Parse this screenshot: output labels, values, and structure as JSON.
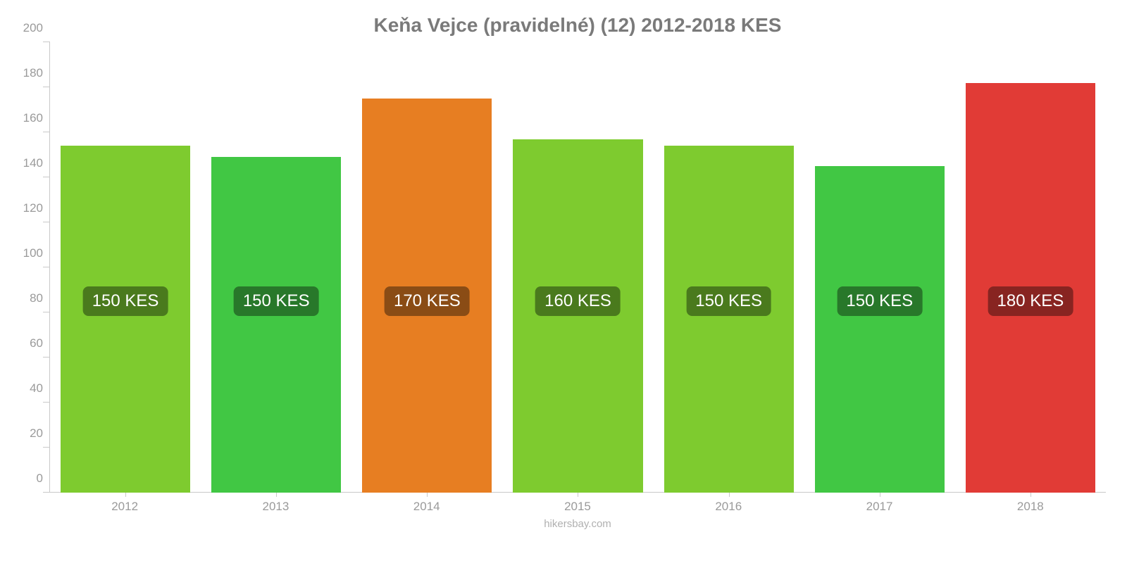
{
  "chart": {
    "type": "bar",
    "title": "Keňa Vejce (pravidelné) (12) 2012-2018 KES",
    "title_color": "#7a7a7a",
    "title_fontsize": 28,
    "background_color": "#ffffff",
    "axis_color": "#c9c9c9",
    "tick_label_color": "#9a9a9a",
    "tick_label_fontsize": 17,
    "ylim_min": 0,
    "ylim_max": 200,
    "ytick_step": 20,
    "yticks": [
      0,
      20,
      40,
      60,
      80,
      100,
      120,
      140,
      160,
      180,
      200
    ],
    "bar_width_pct": 86,
    "badge_fontsize": 24,
    "badge_text_color": "#ffffff",
    "badge_y_value": 85,
    "footer": "hikersbay.com",
    "footer_color": "#b0b0b0",
    "categories": [
      "2012",
      "2013",
      "2014",
      "2015",
      "2016",
      "2017",
      "2018"
    ],
    "values": [
      154,
      149,
      175,
      157,
      154,
      145,
      182
    ],
    "bar_colors": [
      "#7ecb2f",
      "#41c744",
      "#e77e22",
      "#7ecb2f",
      "#7ecb2f",
      "#41c744",
      "#e13b36"
    ],
    "badge_labels": [
      "150 KES",
      "150 KES",
      "170 KES",
      "160 KES",
      "150 KES",
      "150 KES",
      "180 KES"
    ],
    "badge_bg_colors": [
      "#4a7a1d",
      "#28782a",
      "#8a4c15",
      "#4a7a1d",
      "#4a7a1d",
      "#28782a",
      "#882421"
    ]
  }
}
